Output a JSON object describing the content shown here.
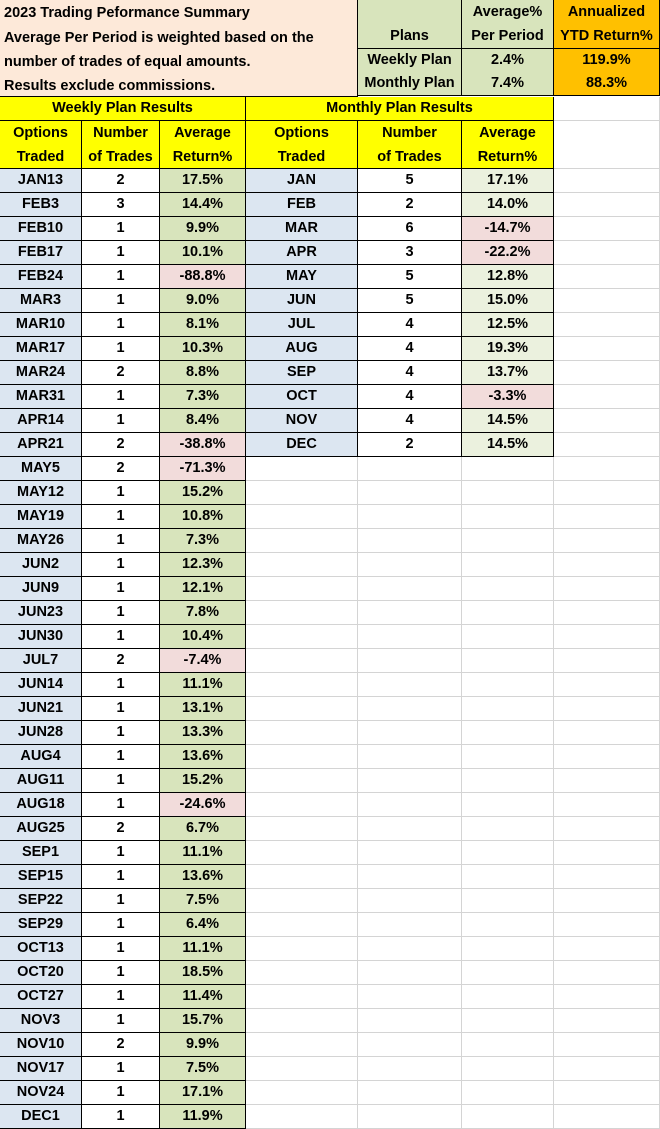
{
  "summary": {
    "lines": [
      "2023 Trading Peformance Summary",
      "Average Per Period is weighted based on the",
      "number of trades of equal amounts.",
      "Results exclude commissions."
    ],
    "plans_header": "Plans",
    "avg_header_1": "Average%",
    "avg_header_2": "Per Period",
    "ytd_header_1": "Annualized",
    "ytd_header_2": "YTD Return%",
    "rows": [
      {
        "plan": "Weekly Plan",
        "avg": "2.4%",
        "ytd": "119.9%"
      },
      {
        "plan": "Monthly Plan",
        "avg": "7.4%",
        "ytd": "88.3%"
      }
    ]
  },
  "weekly": {
    "title": "Weekly Plan Results",
    "headers": {
      "col1": [
        "Options",
        "Traded"
      ],
      "col2": [
        "Number",
        "of Trades"
      ],
      "col3": [
        "Average",
        "Return%"
      ]
    },
    "rows": [
      {
        "opt": "JAN13",
        "n": "2",
        "ret": "17.5%"
      },
      {
        "opt": "FEB3",
        "n": "3",
        "ret": "14.4%"
      },
      {
        "opt": "FEB10",
        "n": "1",
        "ret": "9.9%"
      },
      {
        "opt": "FEB17",
        "n": "1",
        "ret": "10.1%"
      },
      {
        "opt": "FEB24",
        "n": "1",
        "ret": "-88.8%"
      },
      {
        "opt": "MAR3",
        "n": "1",
        "ret": "9.0%"
      },
      {
        "opt": "MAR10",
        "n": "1",
        "ret": "8.1%"
      },
      {
        "opt": "MAR17",
        "n": "1",
        "ret": "10.3%"
      },
      {
        "opt": "MAR24",
        "n": "2",
        "ret": "8.8%"
      },
      {
        "opt": "MAR31",
        "n": "1",
        "ret": "7.3%"
      },
      {
        "opt": "APR14",
        "n": "1",
        "ret": "8.4%"
      },
      {
        "opt": "APR21",
        "n": "2",
        "ret": "-38.8%"
      },
      {
        "opt": "MAY5",
        "n": "2",
        "ret": "-71.3%"
      },
      {
        "opt": "MAY12",
        "n": "1",
        "ret": "15.2%"
      },
      {
        "opt": "MAY19",
        "n": "1",
        "ret": "10.8%"
      },
      {
        "opt": "MAY26",
        "n": "1",
        "ret": "7.3%"
      },
      {
        "opt": "JUN2",
        "n": "1",
        "ret": "12.3%"
      },
      {
        "opt": "JUN9",
        "n": "1",
        "ret": "12.1%"
      },
      {
        "opt": "JUN23",
        "n": "1",
        "ret": "7.8%"
      },
      {
        "opt": "JUN30",
        "n": "1",
        "ret": "10.4%"
      },
      {
        "opt": "JUL7",
        "n": "2",
        "ret": "-7.4%"
      },
      {
        "opt": "JUN14",
        "n": "1",
        "ret": "11.1%"
      },
      {
        "opt": "JUN21",
        "n": "1",
        "ret": "13.1%"
      },
      {
        "opt": "JUN28",
        "n": "1",
        "ret": "13.3%"
      },
      {
        "opt": "AUG4",
        "n": "1",
        "ret": "13.6%"
      },
      {
        "opt": "AUG11",
        "n": "1",
        "ret": "15.2%"
      },
      {
        "opt": "AUG18",
        "n": "1",
        "ret": "-24.6%"
      },
      {
        "opt": "AUG25",
        "n": "2",
        "ret": "6.7%"
      },
      {
        "opt": "SEP1",
        "n": "1",
        "ret": "11.1%"
      },
      {
        "opt": "SEP15",
        "n": "1",
        "ret": "13.6%"
      },
      {
        "opt": "SEP22",
        "n": "1",
        "ret": "7.5%"
      },
      {
        "opt": "SEP29",
        "n": "1",
        "ret": "6.4%"
      },
      {
        "opt": "OCT13",
        "n": "1",
        "ret": "11.1%"
      },
      {
        "opt": "OCT20",
        "n": "1",
        "ret": "18.5%"
      },
      {
        "opt": "OCT27",
        "n": "1",
        "ret": "11.4%"
      },
      {
        "opt": "NOV3",
        "n": "1",
        "ret": "15.7%"
      },
      {
        "opt": "NOV10",
        "n": "2",
        "ret": "9.9%"
      },
      {
        "opt": "NOV17",
        "n": "1",
        "ret": "7.5%"
      },
      {
        "opt": "NOV24",
        "n": "1",
        "ret": "17.1%"
      },
      {
        "opt": "DEC1",
        "n": "1",
        "ret": "11.9%"
      }
    ]
  },
  "monthly": {
    "title": "Monthly Plan Results",
    "headers": {
      "col1": [
        "Options",
        "Traded"
      ],
      "col2": [
        "Number",
        "of Trades"
      ],
      "col3": [
        "Average",
        "Return%"
      ]
    },
    "rows": [
      {
        "opt": "JAN",
        "n": "5",
        "ret": "17.1%"
      },
      {
        "opt": "FEB",
        "n": "2",
        "ret": "14.0%"
      },
      {
        "opt": "MAR",
        "n": "6",
        "ret": "-14.7%"
      },
      {
        "opt": "APR",
        "n": "3",
        "ret": "-22.2%"
      },
      {
        "opt": "MAY",
        "n": "5",
        "ret": "12.8%"
      },
      {
        "opt": "JUN",
        "n": "5",
        "ret": "15.0%"
      },
      {
        "opt": "JUL",
        "n": "4",
        "ret": "12.5%"
      },
      {
        "opt": "AUG",
        "n": "4",
        "ret": "19.3%"
      },
      {
        "opt": "SEP",
        "n": "4",
        "ret": "13.7%"
      },
      {
        "opt": "OCT",
        "n": "4",
        "ret": "-3.3%"
      },
      {
        "opt": "NOV",
        "n": "4",
        "ret": "14.5%"
      },
      {
        "opt": "DEC",
        "n": "2",
        "ret": "14.5%"
      }
    ]
  },
  "colors": {
    "summary_bg": "#fde9d9",
    "plan_bg": "#d8e4bc",
    "ytd_bg": "#ffc000",
    "header_bg": "#ffff00",
    "options_bg": "#dce6f1",
    "positive_weekly_bg": "#d8e4bc",
    "positive_monthly_bg": "#ebf1de",
    "negative_bg": "#f2dcdb"
  }
}
